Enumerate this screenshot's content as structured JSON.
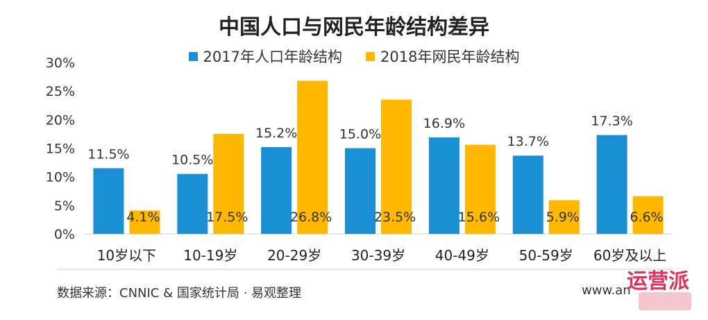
{
  "title": "中国人口与网民年龄结构差异",
  "footer": {
    "source": "数据来源：CNNIC & 国家统计局 · 易观整理",
    "url": "www.an"
  },
  "logo": {
    "text": "运营派"
  },
  "colors": {
    "series2017": "#1a8fd6",
    "series2018": "#ffb800"
  },
  "chart_data": {
    "type": "bar",
    "categories": [
      "10岁以下",
      "10-19岁",
      "20-29岁",
      "30-39岁",
      "40-49岁",
      "50-59岁",
      "60岁及以上"
    ],
    "series": [
      {
        "name": "2017年人口年龄结构",
        "values": [
          11.5,
          10.5,
          15.2,
          15.0,
          16.9,
          13.7,
          17.3
        ],
        "labels": [
          "11.5%",
          "10.5%",
          "15.2%",
          "15.0%",
          "16.9%",
          "13.7%",
          "17.3%"
        ]
      },
      {
        "name": "2018年网民年龄结构",
        "values": [
          4.1,
          17.5,
          26.8,
          23.5,
          15.6,
          5.9,
          6.6
        ],
        "labels": [
          "4.1%",
          "17.5%",
          "26.8%",
          "23.5%",
          "15.6%",
          "5.9%",
          "6.6%"
        ]
      }
    ],
    "yticks": [
      "0%",
      "5%",
      "10%",
      "15%",
      "20%",
      "25%",
      "30%"
    ],
    "ylim": [
      0,
      30
    ],
    "legend": "top"
  }
}
